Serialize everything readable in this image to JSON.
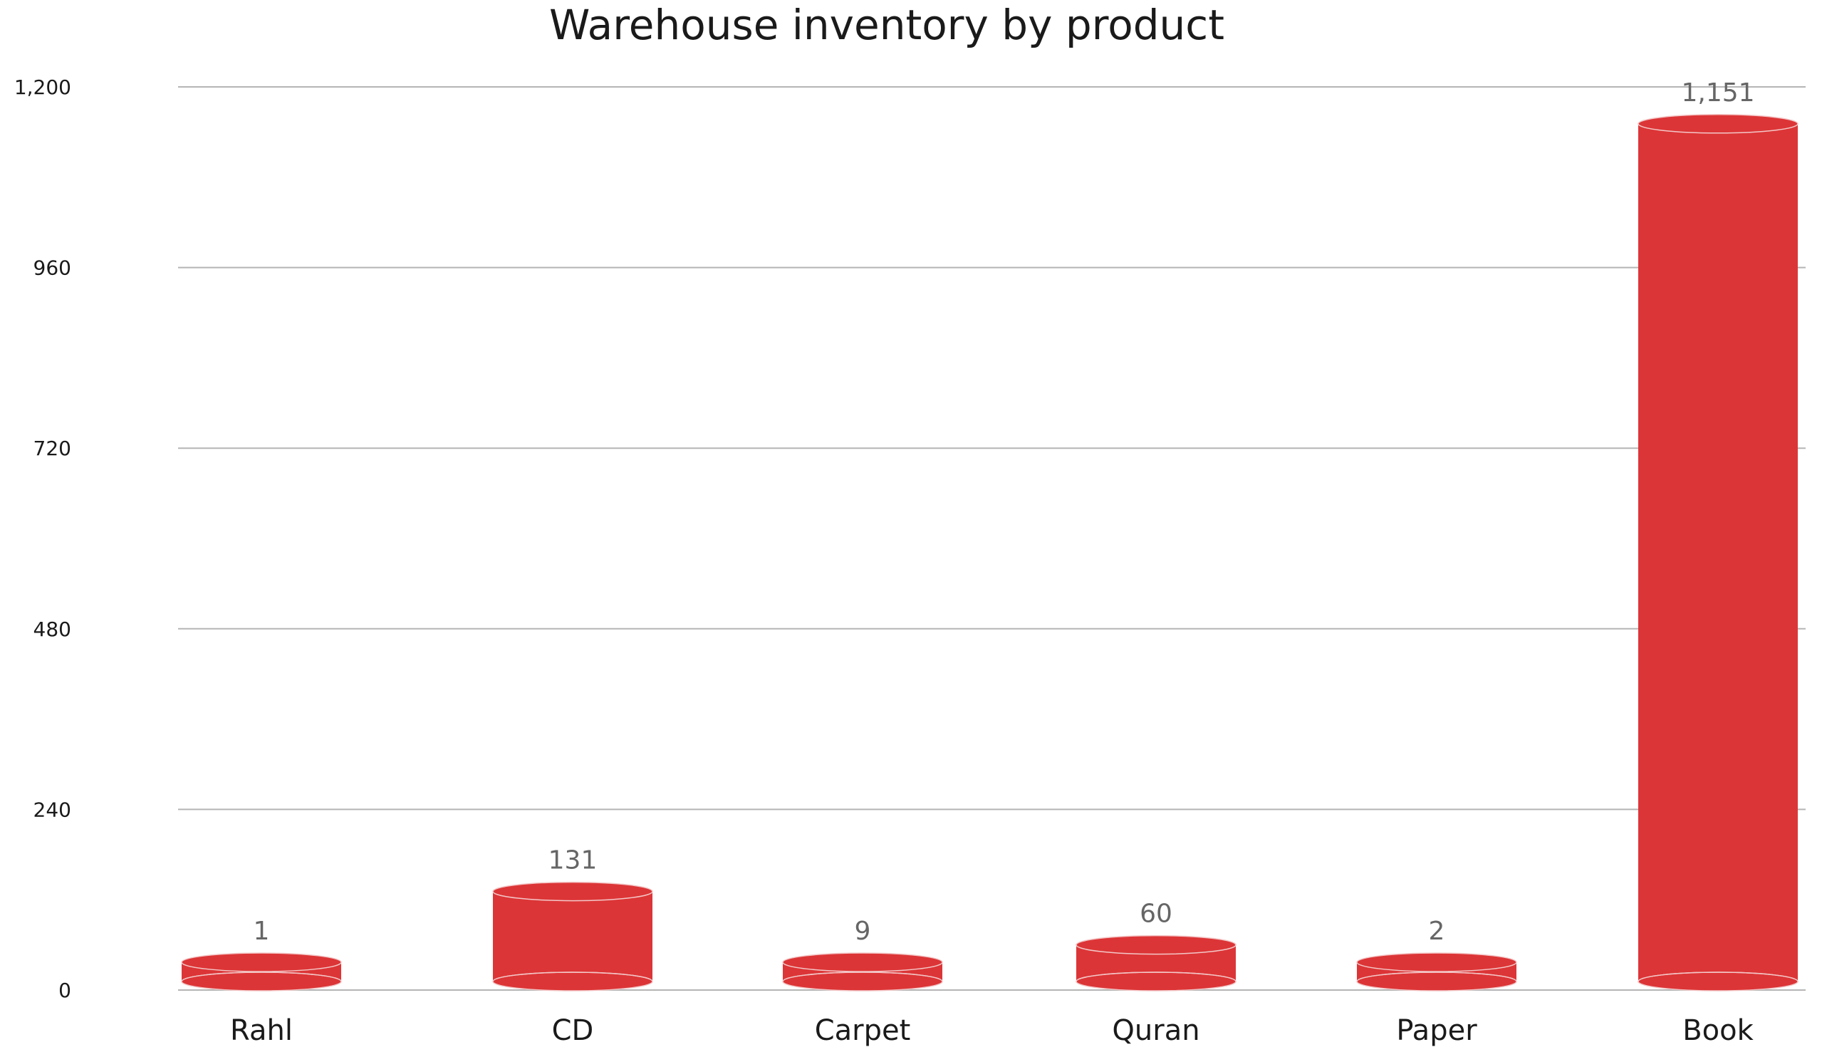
{
  "chart_data": {
    "type": "bar",
    "title": "Warehouse inventory by product",
    "xlabel": "",
    "ylabel": "",
    "categories": [
      "Rahl",
      "CD",
      "Carpet",
      "Quran",
      "Paper",
      "Book"
    ],
    "values": [
      1,
      131,
      9,
      60,
      2,
      1151
    ],
    "value_labels": [
      "1",
      "131",
      "9",
      "60",
      "2",
      "1,151"
    ],
    "ylim": [
      0,
      1200
    ],
    "yticks": [
      0,
      240,
      480,
      720,
      960,
      1200
    ],
    "ytick_labels": [
      "0",
      "240",
      "480",
      "720",
      "960",
      "1,200"
    ],
    "grid": true,
    "legend": "none",
    "bar_style": "cylinder",
    "colors": {
      "bar": "#dc3537",
      "bar_edge": "#f3c7c7",
      "grid": "#b5b5b5",
      "data_label": "#666666",
      "text": "#1a1a1a"
    }
  }
}
